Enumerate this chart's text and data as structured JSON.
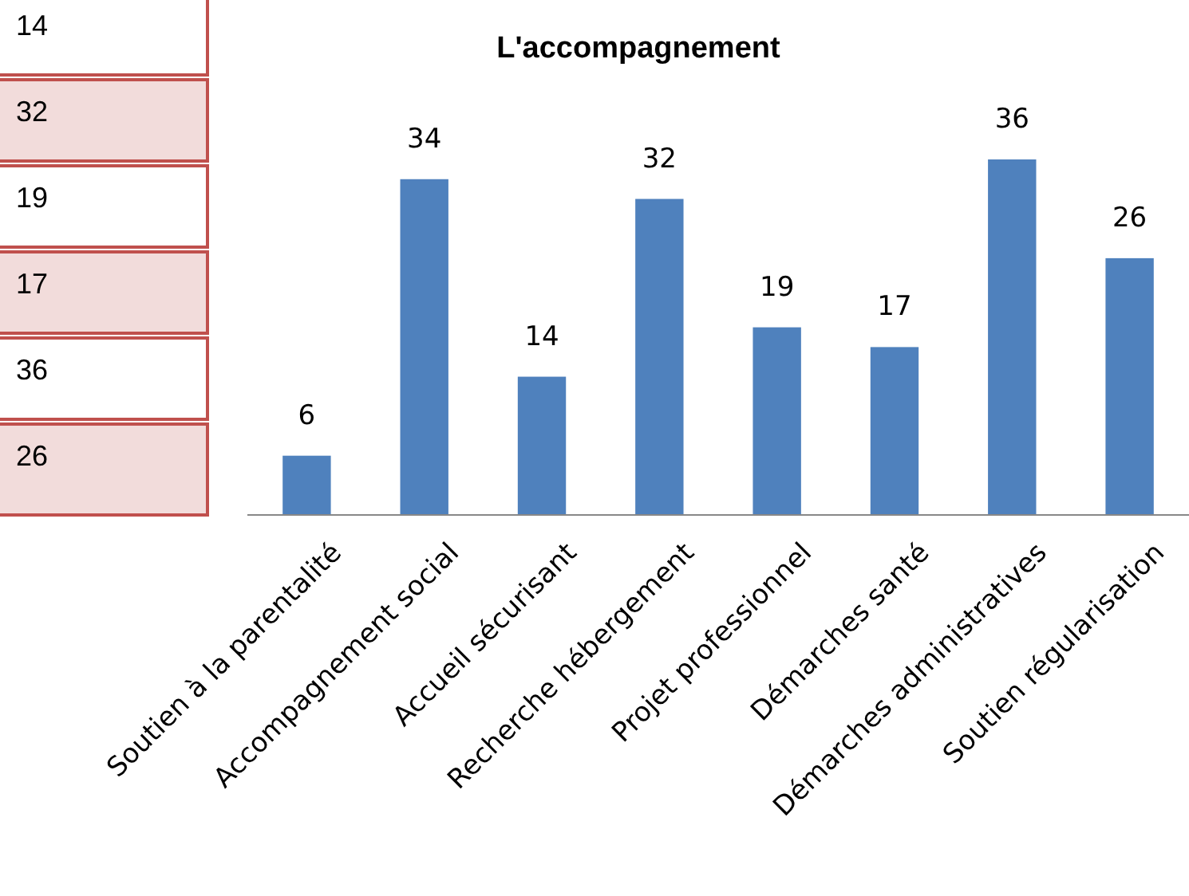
{
  "chart_data": {
    "type": "bar",
    "title": "L'accompagnement",
    "categories": [
      "Soutien à la parentalité",
      "Accompagnement social",
      "Accueil sécurisant",
      "Recherche hébergement",
      "Projet professionnel",
      "Démarches santé",
      "Démarches administratives",
      "Soutien régularisation"
    ],
    "values": [
      6,
      34,
      14,
      32,
      19,
      17,
      36,
      26
    ],
    "color": "#4f81bd",
    "data_labels": true,
    "annotations": [
      "14",
      "32",
      "19",
      "17",
      "36",
      "26"
    ]
  }
}
